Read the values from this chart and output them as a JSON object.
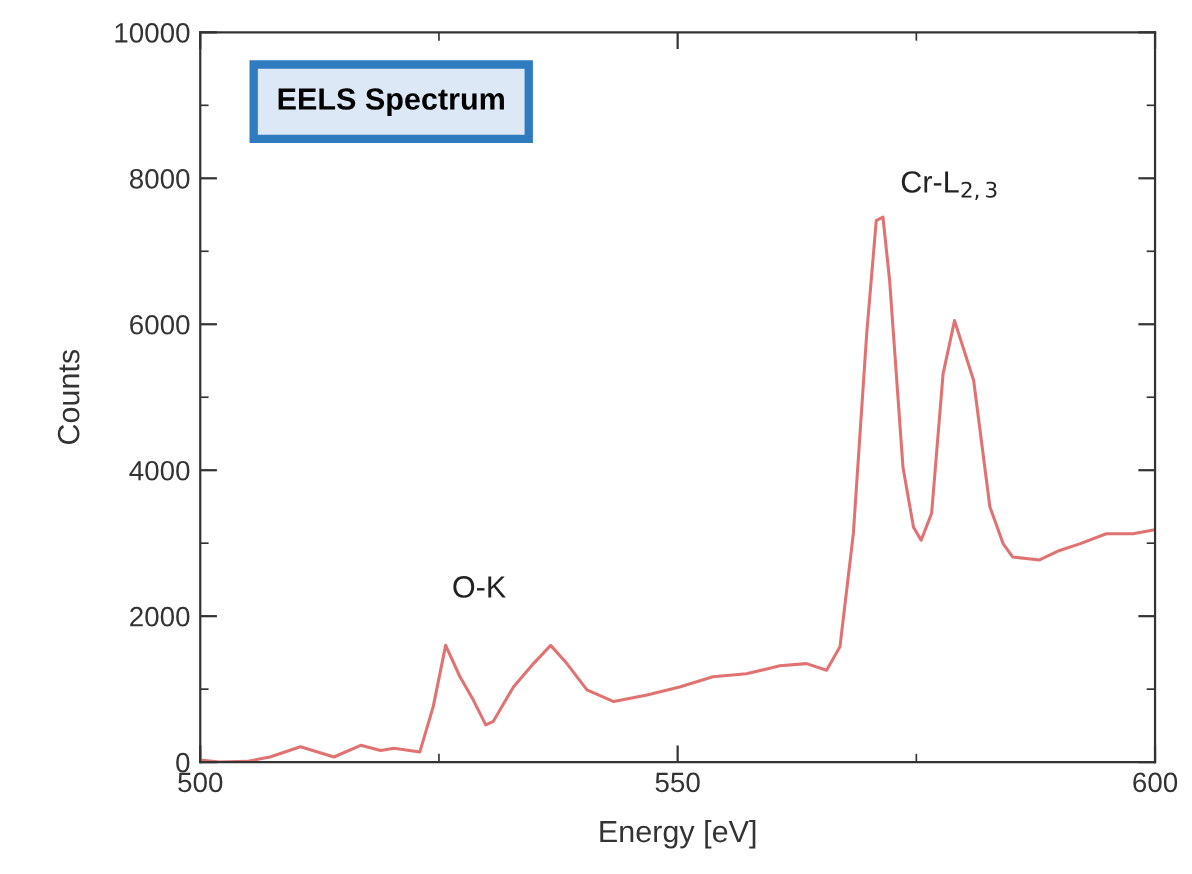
{
  "chart_data": {
    "type": "line",
    "title": "EELS Spectrum",
    "xlabel": "Energy [eV]",
    "ylabel": "Counts",
    "x": [
      500,
      502,
      504.9,
      507.3,
      510.5,
      514,
      516.8,
      518.9,
      520.3,
      523,
      524.4,
      525.7,
      527.2,
      528.6,
      529.9,
      530.7,
      532.8,
      534.9,
      536.7,
      538.4,
      540.5,
      543.3,
      546.8,
      550.2,
      553.7,
      557.2,
      560.7,
      563.5,
      565.6,
      567,
      568.4,
      569.8,
      570.8,
      571.5,
      572.2,
      573.6,
      574.7,
      575.5,
      576.6,
      577.8,
      579,
      581,
      582.7,
      584.1,
      585.1,
      587.9,
      590,
      592.1,
      594.9,
      597.7,
      599.8
    ],
    "series": [
      {
        "color": "#e07272",
        "values": [
          30,
          0,
          10,
          70,
          210,
          70,
          230,
          160,
          190,
          140,
          760,
          1600,
          1170,
          850,
          510,
          560,
          1030,
          1350,
          1600,
          1350,
          990,
          830,
          920,
          1030,
          1170,
          1210,
          1320,
          1350,
          1260,
          1580,
          3130,
          5870,
          7420,
          7470,
          6600,
          4040,
          3220,
          3040,
          3410,
          5320,
          6050,
          5230,
          3500,
          2990,
          2810,
          2770,
          2900,
          2990,
          3130,
          3130,
          3180
        ]
      }
    ],
    "xlim": [
      500,
      600
    ],
    "xticks": [
      500,
      550,
      600
    ],
    "ylim": [
      0,
      10000
    ],
    "yticks": [
      0,
      2000,
      4000,
      6000,
      8000,
      10000
    ],
    "annotations": [
      "O-K",
      "Cr-L$_{2,3}$"
    ],
    "grid": false,
    "legend": false,
    "marker": "none",
    "line_style": "solid"
  }
}
